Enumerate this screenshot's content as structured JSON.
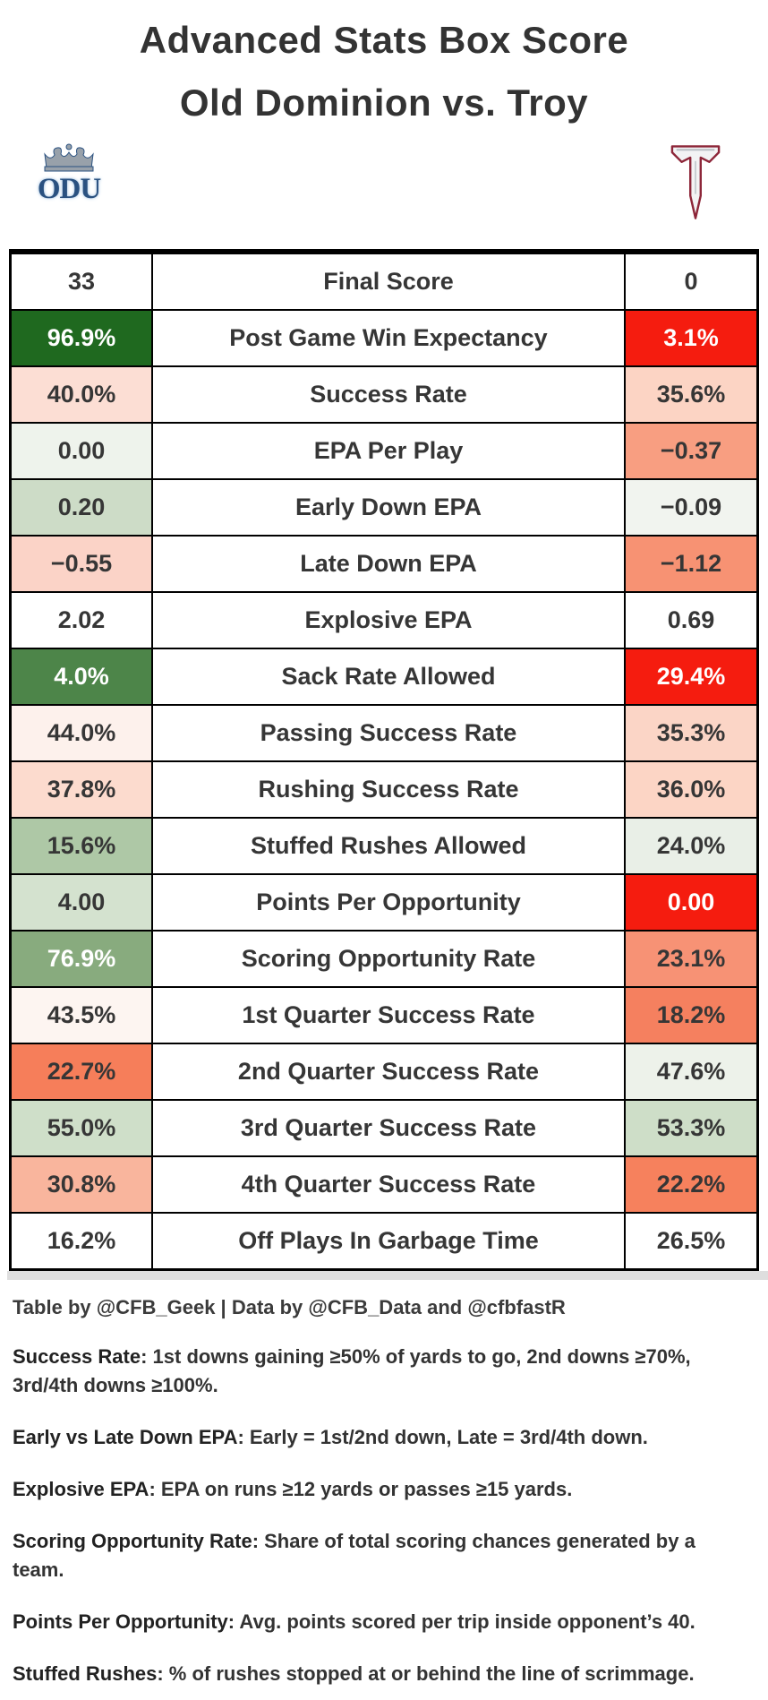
{
  "header": {
    "title_line1": "Advanced Stats Box Score",
    "title_line2": "Old Dominion vs. Troy"
  },
  "logos": {
    "odu_text": "ODU",
    "odu_icon": "odu-crown-logo",
    "troy_icon": "troy-t-logo"
  },
  "colors": {
    "strong_green": "#1f691f",
    "mid_green": "#4d8549",
    "light_green": "#88ab7e",
    "strong_red": "#f51c0f",
    "white_text": "#ffffff",
    "dark_text": "#363636"
  },
  "chart_data": {
    "type": "table",
    "teams": [
      "Old Dominion (ODU)",
      "Troy"
    ],
    "rows": [
      {
        "odu": "33",
        "metric": "Final Score",
        "troy": "0",
        "odu_bg": "#ffffff",
        "troy_bg": "#ffffff",
        "odu_fg": "#363636",
        "troy_fg": "#363636"
      },
      {
        "odu": "96.9%",
        "metric": "Post Game Win Expectancy",
        "troy": "3.1%",
        "odu_bg": "#1f691f",
        "troy_bg": "#f51c0f",
        "odu_fg": "#ffffff",
        "troy_fg": "#ffffff"
      },
      {
        "odu": "40.0%",
        "metric": "Success Rate",
        "troy": "35.6%",
        "odu_bg": "#fcded4",
        "troy_bg": "#fcd4c4",
        "odu_fg": "#363636",
        "troy_fg": "#363636"
      },
      {
        "odu": "0.00",
        "metric": "EPA Per Play",
        "troy": "−0.37",
        "odu_bg": "#eef3ec",
        "troy_bg": "#f89e81",
        "odu_fg": "#363636",
        "troy_fg": "#363636"
      },
      {
        "odu": "0.20",
        "metric": "Early Down EPA",
        "troy": "−0.09",
        "odu_bg": "#cddcc7",
        "troy_bg": "#f1f4ef",
        "odu_fg": "#363636",
        "troy_fg": "#363636"
      },
      {
        "odu": "−0.55",
        "metric": "Late Down EPA",
        "troy": "−1.12",
        "odu_bg": "#fbd3c7",
        "troy_bg": "#f79273",
        "odu_fg": "#363636",
        "troy_fg": "#363636"
      },
      {
        "odu": "2.02",
        "metric": "Explosive EPA",
        "troy": "0.69",
        "odu_bg": "#ffffff",
        "troy_bg": "#ffffff",
        "odu_fg": "#363636",
        "troy_fg": "#363636"
      },
      {
        "odu": "4.0%",
        "metric": "Sack Rate Allowed",
        "troy": "29.4%",
        "odu_bg": "#4d8549",
        "troy_bg": "#f51c0f",
        "odu_fg": "#ffffff",
        "troy_fg": "#ffffff"
      },
      {
        "odu": "44.0%",
        "metric": "Passing Success Rate",
        "troy": "35.3%",
        "odu_bg": "#fdf1ec",
        "troy_bg": "#fbd5c6",
        "odu_fg": "#363636",
        "troy_fg": "#363636"
      },
      {
        "odu": "37.8%",
        "metric": "Rushing Success Rate",
        "troy": "36.0%",
        "odu_bg": "#fcdbce",
        "troy_bg": "#fcd5c5",
        "odu_fg": "#363636",
        "troy_fg": "#363636"
      },
      {
        "odu": "15.6%",
        "metric": "Stuffed Rushes Allowed",
        "troy": "24.0%",
        "odu_bg": "#aec8a6",
        "troy_bg": "#e9efe7",
        "odu_fg": "#363636",
        "troy_fg": "#363636"
      },
      {
        "odu": "4.00",
        "metric": "Points Per Opportunity",
        "troy": "0.00",
        "odu_bg": "#d4e2cf",
        "troy_bg": "#f51c0f",
        "odu_fg": "#363636",
        "troy_fg": "#ffffff"
      },
      {
        "odu": "76.9%",
        "metric": "Scoring Opportunity Rate",
        "troy": "23.1%",
        "odu_bg": "#88ab7e",
        "troy_bg": "#f79275",
        "odu_fg": "#ffffff",
        "troy_fg": "#363636"
      },
      {
        "odu": "43.5%",
        "metric": "1st Quarter Success Rate",
        "troy": "18.2%",
        "odu_bg": "#fdf5f1",
        "troy_bg": "#f5805f",
        "odu_fg": "#363636",
        "troy_fg": "#363636"
      },
      {
        "odu": "22.7%",
        "metric": "2nd Quarter Success Rate",
        "troy": "47.6%",
        "odu_bg": "#f67e5a",
        "troy_bg": "#edf2ea",
        "odu_fg": "#363636",
        "troy_fg": "#363636"
      },
      {
        "odu": "55.0%",
        "metric": "3rd Quarter Success Rate",
        "troy": "53.3%",
        "odu_bg": "#cfdfc9",
        "troy_bg": "#cedec8",
        "odu_fg": "#363636",
        "troy_fg": "#363636"
      },
      {
        "odu": "30.8%",
        "metric": "4th Quarter Success Rate",
        "troy": "22.2%",
        "odu_bg": "#f9b59d",
        "troy_bg": "#f6815d",
        "odu_fg": "#363636",
        "troy_fg": "#363636"
      },
      {
        "odu": "16.2%",
        "metric": "Off Plays In Garbage Time",
        "troy": "26.5%",
        "odu_bg": "#ffffff",
        "troy_bg": "#ffffff",
        "odu_fg": "#363636",
        "troy_fg": "#363636"
      }
    ]
  },
  "attribution": "Table by @CFB_Geek | Data by @CFB_Data and @cfbfastR",
  "footnotes": [
    {
      "term": "Success Rate",
      "text": ": 1st downs gaining ≥50% of yards to go, 2nd downs ≥70%, 3rd/4th downs ≥100%."
    },
    {
      "term": "Early vs Late Down EPA",
      "text": ": Early = 1st/2nd down, Late = 3rd/4th down."
    },
    {
      "term": "Explosive EPA",
      "text": ": EPA on runs ≥12 yards or passes ≥15 yards."
    },
    {
      "term": "Scoring Opportunity Rate",
      "text": ": Share of total scoring chances generated by a team."
    },
    {
      "term": "Points Per Opportunity",
      "text": ": Avg. points scored per trip inside opponent’s 40."
    },
    {
      "term": "Stuffed Rushes",
      "text": ": % of rushes stopped at or behind the line of scrimmage."
    }
  ]
}
